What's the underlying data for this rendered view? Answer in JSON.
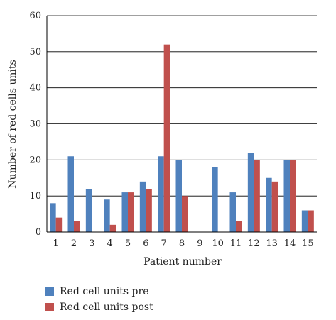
{
  "chart_data": {
    "type": "bar",
    "xlabel": "Patient number",
    "ylabel": "Number of red cells units",
    "ylim": [
      0,
      60
    ],
    "yticks": [
      0,
      10,
      20,
      30,
      40,
      50,
      60
    ],
    "grid": true,
    "legend_position": "bottom-left",
    "categories": [
      "1",
      "2",
      "3",
      "4",
      "5",
      "6",
      "7",
      "8",
      "9",
      "10",
      "11",
      "12",
      "13",
      "14",
      "15"
    ],
    "series": [
      {
        "name": "Red cell units pre",
        "color": "#4f81bd",
        "values": [
          8,
          21,
          12,
          9,
          11,
          14,
          21,
          20,
          0,
          18,
          11,
          22,
          15,
          20,
          6
        ]
      },
      {
        "name": "Red cell units post",
        "color": "#c0504d",
        "values": [
          4,
          3,
          0,
          2,
          11,
          12,
          52,
          10,
          0,
          0,
          3,
          20,
          14,
          20,
          6
        ]
      }
    ]
  }
}
